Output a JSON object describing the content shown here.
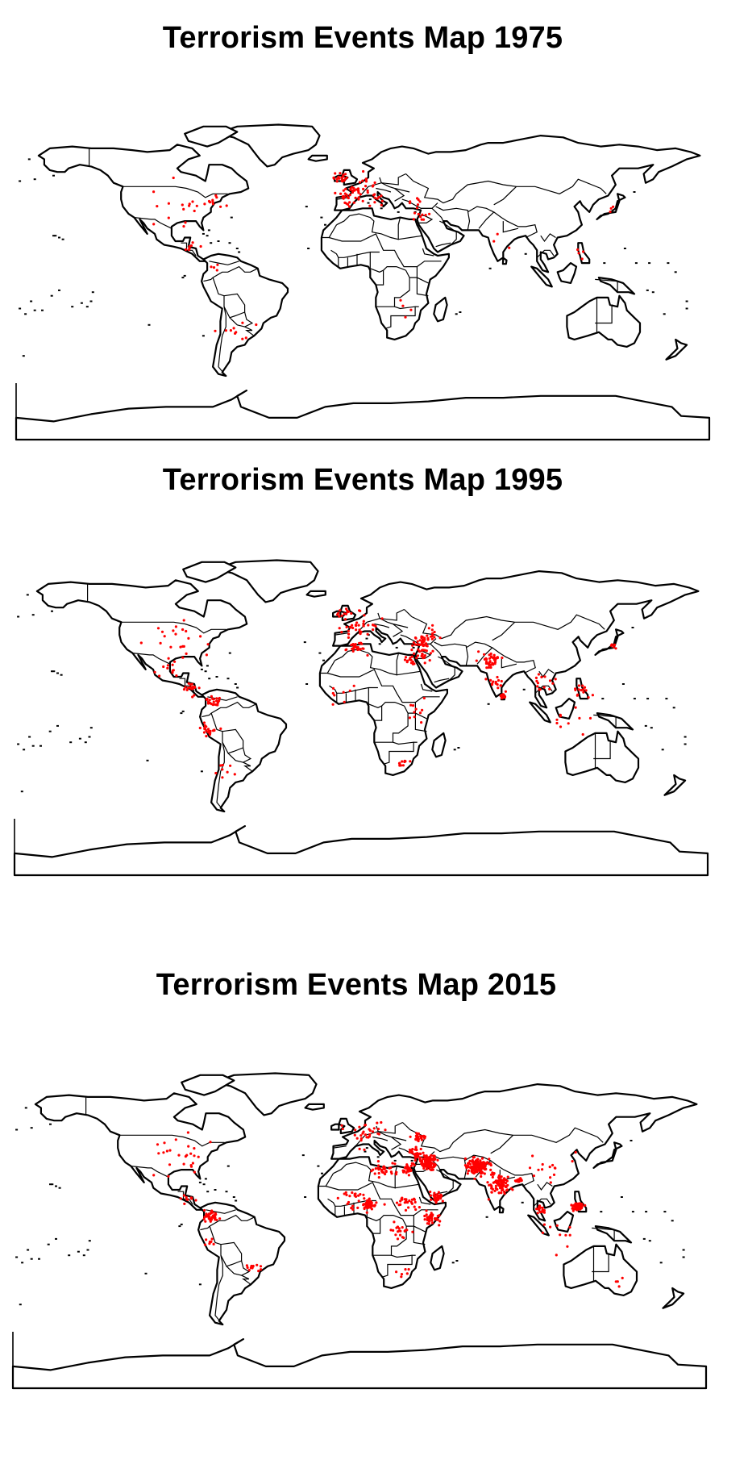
{
  "colors": {
    "event_marker": "#ff0000",
    "land_outline": "#000000",
    "background": "#ffffff"
  },
  "maps": [
    {
      "title": "Terrorism Events Map 1975",
      "year": 1975,
      "intensity": "low",
      "hotspots": [
        {
          "region": "western-europe",
          "lon": 2,
          "lat": 48,
          "spread": 10,
          "count": 40
        },
        {
          "region": "uk-ireland",
          "lon": -6,
          "lat": 54,
          "spread": 4,
          "count": 18
        },
        {
          "region": "spain",
          "lon": -3,
          "lat": 41,
          "spread": 4,
          "count": 10
        },
        {
          "region": "italy",
          "lon": 12,
          "lat": 42,
          "spread": 4,
          "count": 10
        },
        {
          "region": "turkey",
          "lon": 33,
          "lat": 39,
          "spread": 5,
          "count": 8
        },
        {
          "region": "middle-east",
          "lon": 36,
          "lat": 32,
          "spread": 4,
          "count": 8
        },
        {
          "region": "usa",
          "lon": -92,
          "lat": 38,
          "spread": 18,
          "count": 18
        },
        {
          "region": "us-east",
          "lon": -74,
          "lat": 40,
          "spread": 4,
          "count": 8
        },
        {
          "region": "central-america",
          "lon": -88,
          "lat": 15,
          "spread": 6,
          "count": 6
        },
        {
          "region": "argentina",
          "lon": -62,
          "lat": -30,
          "spread": 8,
          "count": 10
        },
        {
          "region": "colombia",
          "lon": -74,
          "lat": 5,
          "spread": 5,
          "count": 4
        },
        {
          "region": "philippines",
          "lon": 122,
          "lat": 12,
          "spread": 4,
          "count": 4
        },
        {
          "region": "southern-africa",
          "lon": 28,
          "lat": -18,
          "spread": 6,
          "count": 4
        },
        {
          "region": "japan",
          "lon": 138,
          "lat": 36,
          "spread": 3,
          "count": 3
        },
        {
          "region": "india",
          "lon": 78,
          "lat": 20,
          "spread": 6,
          "count": 3
        }
      ]
    },
    {
      "title": "Terrorism Events Map 1995",
      "year": 1995,
      "intensity": "medium",
      "hotspots": [
        {
          "region": "western-europe",
          "lon": 5,
          "lat": 47,
          "spread": 10,
          "count": 35
        },
        {
          "region": "uk-ireland",
          "lon": -5,
          "lat": 54,
          "spread": 4,
          "count": 12
        },
        {
          "region": "turkey",
          "lon": 37,
          "lat": 38,
          "spread": 5,
          "count": 30
        },
        {
          "region": "middle-east",
          "lon": 38,
          "lat": 32,
          "spread": 5,
          "count": 25
        },
        {
          "region": "algeria",
          "lon": 3,
          "lat": 35,
          "spread": 5,
          "count": 25
        },
        {
          "region": "egypt",
          "lon": 31,
          "lat": 28,
          "spread": 3,
          "count": 12
        },
        {
          "region": "india-pakistan",
          "lon": 74,
          "lat": 28,
          "spread": 6,
          "count": 40
        },
        {
          "region": "india-south",
          "lon": 78,
          "lat": 15,
          "spread": 6,
          "count": 15
        },
        {
          "region": "sri-lanka",
          "lon": 80.5,
          "lat": 8,
          "spread": 1.2,
          "count": 25
        },
        {
          "region": "south-east-asia",
          "lon": 102,
          "lat": 15,
          "spread": 8,
          "count": 15
        },
        {
          "region": "philippines",
          "lon": 122,
          "lat": 11,
          "spread": 4,
          "count": 15
        },
        {
          "region": "indonesia",
          "lon": 115,
          "lat": -5,
          "spread": 12,
          "count": 10
        },
        {
          "region": "central-america",
          "lon": -86,
          "lat": 13,
          "spread": 4,
          "count": 20
        },
        {
          "region": "colombia",
          "lon": -74,
          "lat": 6,
          "spread": 4,
          "count": 25
        },
        {
          "region": "peru",
          "lon": -76,
          "lat": -10,
          "spread": 4,
          "count": 20
        },
        {
          "region": "usa",
          "lon": -92,
          "lat": 38,
          "spread": 18,
          "count": 25
        },
        {
          "region": "mexico",
          "lon": -100,
          "lat": 22,
          "spread": 6,
          "count": 8
        },
        {
          "region": "chile-argentina",
          "lon": -68,
          "lat": -33,
          "spread": 6,
          "count": 8
        },
        {
          "region": "west-africa",
          "lon": -5,
          "lat": 8,
          "spread": 8,
          "count": 8
        },
        {
          "region": "east-africa",
          "lon": 35,
          "lat": 0,
          "spread": 8,
          "count": 10
        },
        {
          "region": "south-africa",
          "lon": 28,
          "lat": -28,
          "spread": 3,
          "count": 10
        },
        {
          "region": "russia-caucasus",
          "lon": 44,
          "lat": 43,
          "spread": 6,
          "count": 10
        },
        {
          "region": "japan",
          "lon": 138,
          "lat": 36,
          "spread": 3,
          "count": 6
        }
      ]
    },
    {
      "title": "Terrorism Events Map 2015",
      "year": 2015,
      "intensity": "high",
      "hotspots": [
        {
          "region": "iraq-syria",
          "lon": 42,
          "lat": 34,
          "spread": 4,
          "count": 120
        },
        {
          "region": "afghanistan-pakistan",
          "lon": 68,
          "lat": 32,
          "spread": 5,
          "count": 150
        },
        {
          "region": "india",
          "lon": 80,
          "lat": 22,
          "spread": 7,
          "count": 80
        },
        {
          "region": "yemen",
          "lon": 46,
          "lat": 15,
          "spread": 3,
          "count": 40
        },
        {
          "region": "nigeria",
          "lon": 10,
          "lat": 11,
          "spread": 4,
          "count": 60
        },
        {
          "region": "libya",
          "lon": 18,
          "lat": 30,
          "spread": 6,
          "count": 30
        },
        {
          "region": "egypt",
          "lon": 31,
          "lat": 30,
          "spread": 3,
          "count": 30
        },
        {
          "region": "somalia-kenya",
          "lon": 43,
          "lat": 3,
          "spread": 4,
          "count": 40
        },
        {
          "region": "sudan",
          "lon": 30,
          "lat": 12,
          "spread": 5,
          "count": 25
        },
        {
          "region": "drc",
          "lon": 26,
          "lat": -3,
          "spread": 5,
          "count": 20
        },
        {
          "region": "sahel",
          "lon": 0,
          "lat": 15,
          "spread": 6,
          "count": 20
        },
        {
          "region": "turkey",
          "lon": 35,
          "lat": 39,
          "spread": 5,
          "count": 30
        },
        {
          "region": "ukraine",
          "lon": 37,
          "lat": 48,
          "spread": 3,
          "count": 30
        },
        {
          "region": "europe",
          "lon": 8,
          "lat": 50,
          "spread": 10,
          "count": 30
        },
        {
          "region": "philippines",
          "lon": 122,
          "lat": 10,
          "spread": 3,
          "count": 60
        },
        {
          "region": "thailand",
          "lon": 101,
          "lat": 8,
          "spread": 3,
          "count": 20
        },
        {
          "region": "bangladesh",
          "lon": 90,
          "lat": 24,
          "spread": 2,
          "count": 20
        },
        {
          "region": "indonesia",
          "lon": 112,
          "lat": -5,
          "spread": 10,
          "count": 10
        },
        {
          "region": "colombia",
          "lon": -74,
          "lat": 5,
          "spread": 4,
          "count": 40
        },
        {
          "region": "central-america",
          "lon": -86,
          "lat": 14,
          "spread": 4,
          "count": 10
        },
        {
          "region": "usa",
          "lon": -92,
          "lat": 38,
          "spread": 18,
          "count": 25
        },
        {
          "region": "brazil-paraguay",
          "lon": -52,
          "lat": -23,
          "spread": 4,
          "count": 12
        },
        {
          "region": "peru",
          "lon": -75,
          "lat": -10,
          "spread": 3,
          "count": 8
        },
        {
          "region": "china",
          "lon": 105,
          "lat": 32,
          "spread": 10,
          "count": 15
        },
        {
          "region": "southern-africa",
          "lon": 28,
          "lat": -26,
          "spread": 4,
          "count": 6
        },
        {
          "region": "australia",
          "lon": 145,
          "lat": -32,
          "spread": 6,
          "count": 4
        }
      ]
    }
  ]
}
